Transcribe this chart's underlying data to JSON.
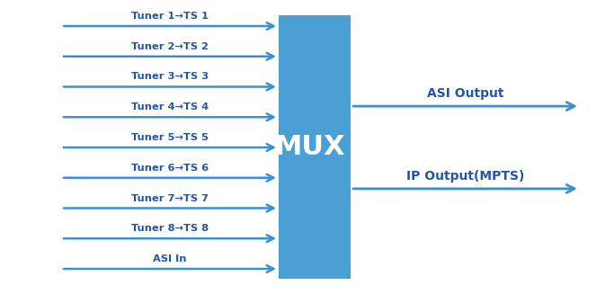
{
  "background_color": "#ffffff",
  "arrow_color": "#3b8fd4",
  "box_color": "#4a9fd5",
  "box_text": "MUX",
  "box_text_color": "#ffffff",
  "input_labels": [
    "Tuner 1→TS 1",
    "Tuner 2→TS 2",
    "Tuner 3→TS 3",
    "Tuner 4→TS 4",
    "Tuner 5→TS 5",
    "Tuner 6→TS 6",
    "Tuner 7→TS 7",
    "Tuner 8→TS 8",
    "ASI In"
  ],
  "output_labels": [
    "ASI Output",
    "IP Output(MPTS)"
  ],
  "label_color": "#2255aa",
  "fig_width": 6.83,
  "fig_height": 3.27,
  "dpi": 100,
  "xlim": [
    0,
    683
  ],
  "ylim": [
    0,
    327
  ]
}
